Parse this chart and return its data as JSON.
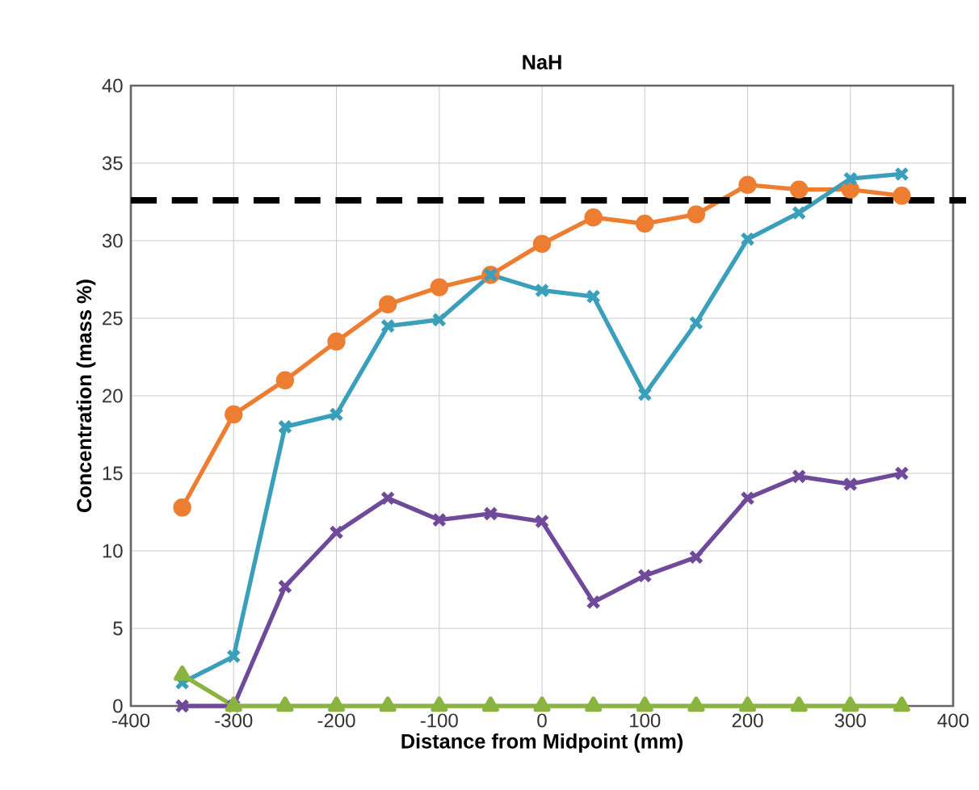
{
  "chart_data": {
    "type": "line",
    "title": "NaH",
    "xlabel": "Distance from Midpoint (mm)",
    "ylabel": "Concentration (mass %)",
    "x": [
      -350,
      -300,
      -250,
      -200,
      -150,
      -100,
      -50,
      0,
      50,
      100,
      150,
      200,
      250,
      300,
      350
    ],
    "series": [
      {
        "color": "#ed7d31",
        "marker": "circle",
        "values": [
          12.8,
          18.8,
          21,
          23.5,
          25.9,
          27,
          27.8,
          29.8,
          31.5,
          31.1,
          31.7,
          33.6,
          33.3,
          33.3,
          32.9
        ]
      },
      {
        "color": "#3a9fba",
        "marker": "cross",
        "values": [
          1.5,
          3.2,
          18,
          18.8,
          24.5,
          24.9,
          27.8,
          26.8,
          26.4,
          20.1,
          24.7,
          30.1,
          31.8,
          34.0,
          34.3
        ]
      },
      {
        "color": "#6f4a9a",
        "marker": "cross",
        "values": [
          0,
          0,
          7.7,
          11.2,
          13.4,
          12,
          12.4,
          11.9,
          6.7,
          8.4,
          9.6,
          13.4,
          14.8,
          14.3,
          15.0
        ]
      },
      {
        "color": "#8ab43f",
        "marker": "triangle",
        "values": [
          2,
          0,
          0,
          0,
          0,
          0,
          0,
          0,
          0,
          0,
          0,
          0,
          0,
          0,
          0
        ]
      }
    ],
    "xlim": [
      -400,
      400
    ],
    "xticks": [
      -400,
      -300,
      -200,
      -100,
      0,
      100,
      200,
      300,
      400
    ],
    "ylim": [
      0,
      40
    ],
    "yticks": [
      0,
      5,
      10,
      15,
      20,
      25,
      30,
      35,
      40
    ],
    "grid": true,
    "line_style": "solid",
    "ref_lines": [
      {
        "axis": "y",
        "value": 32.6,
        "color": "#000000",
        "line_style": "dashed"
      }
    ]
  }
}
